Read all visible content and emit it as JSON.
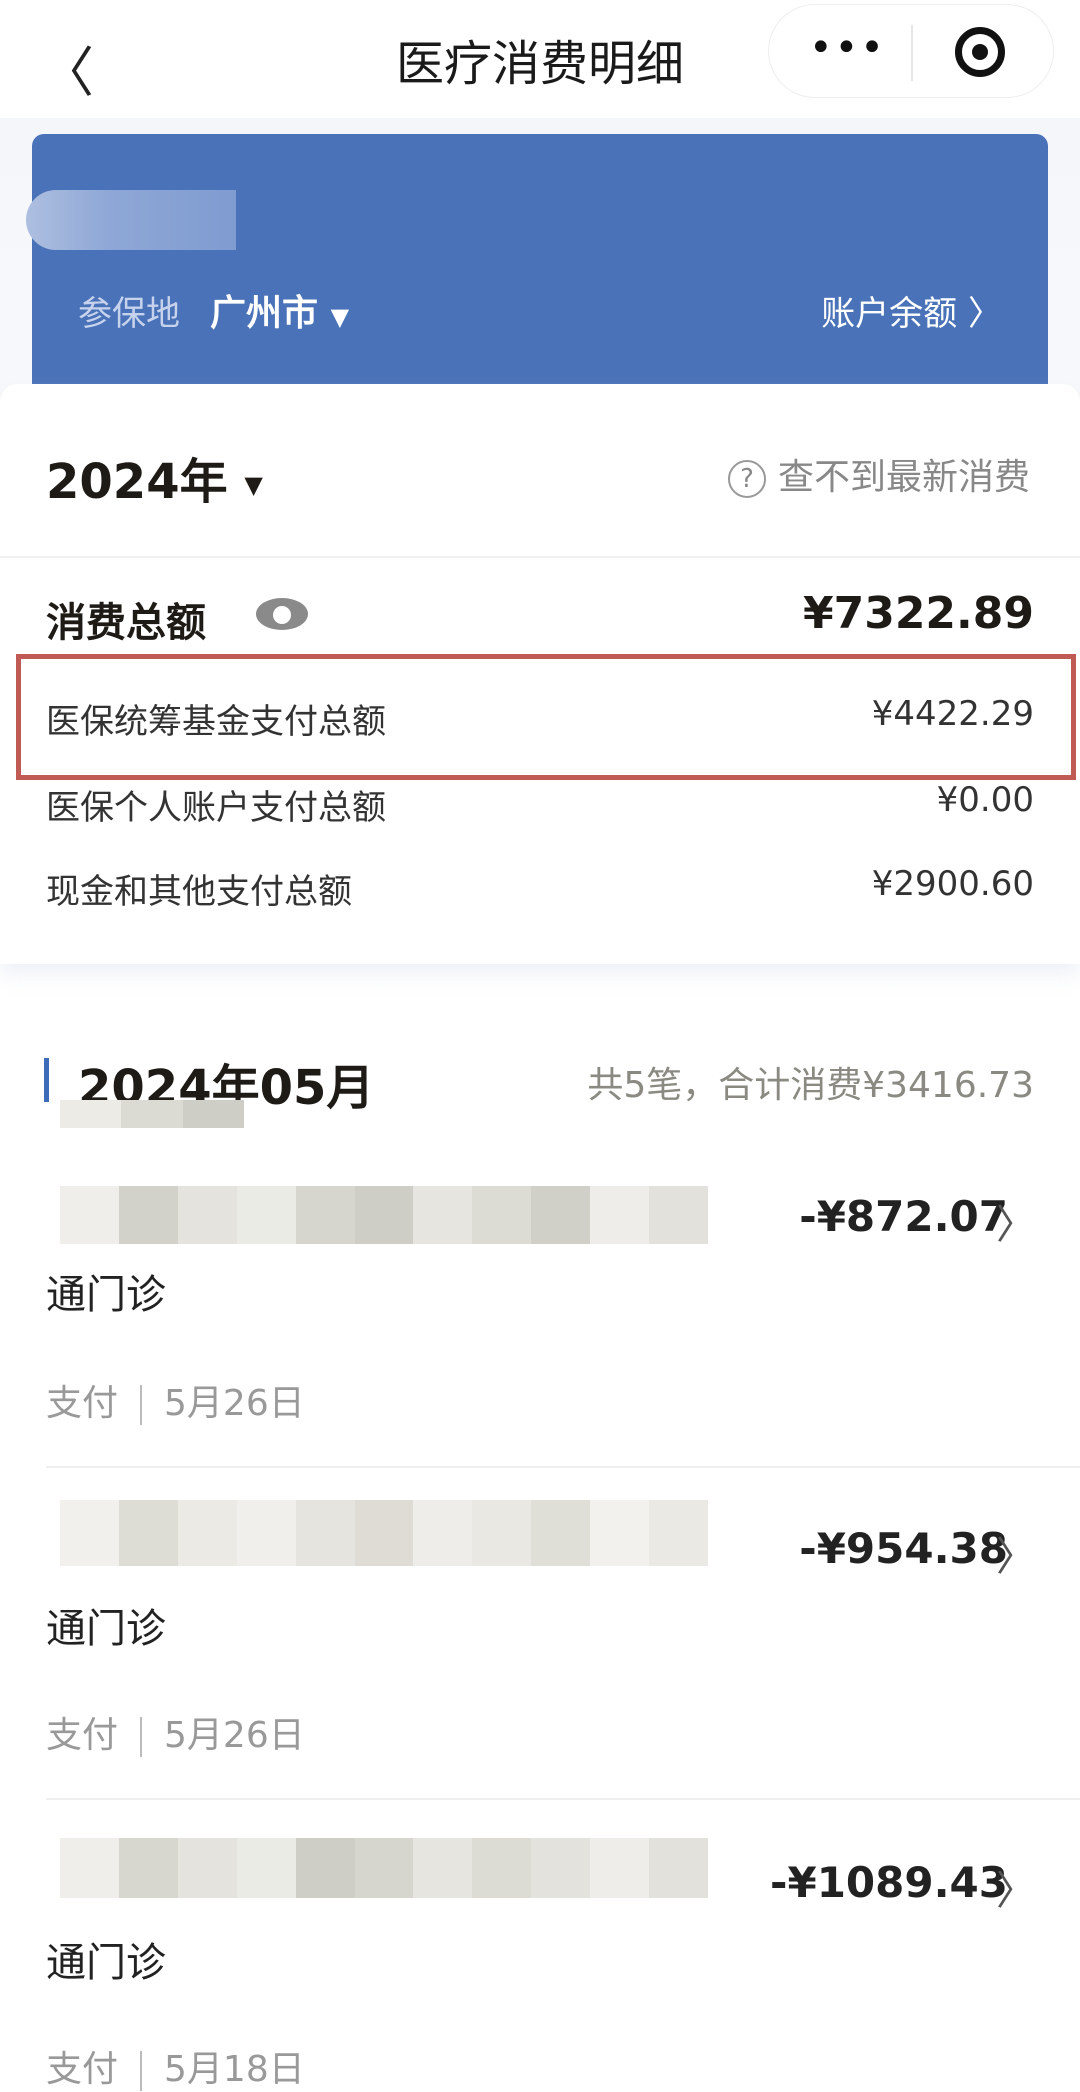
{
  "nav": {
    "title": "医疗消费明细",
    "more": "•••"
  },
  "banner": {
    "location_label": "参保地",
    "city": "广州市",
    "balance_link": "账户余额 〉"
  },
  "summary": {
    "year": "2024年",
    "help": "查不到最新消费",
    "help_icon": "?",
    "total_label": "消费总额",
    "total_value": "¥7322.89",
    "rows": [
      {
        "label": "医保统筹基金支付总额",
        "value": "¥4422.29",
        "highlighted": true
      },
      {
        "label": "医保个人账户支付总额",
        "value": "¥0.00"
      },
      {
        "label": "现金和其他支付总额",
        "value": "¥2900.60"
      }
    ]
  },
  "highlight_color": "#c05a55",
  "accent": "#4a72b8",
  "month": {
    "title": "2024年05月",
    "summary": "共5笔，合计消费¥3416.73"
  },
  "items": [
    {
      "amount": "-¥872.07",
      "type": "通门诊",
      "status": "支付",
      "date": "5月26日"
    },
    {
      "amount": "-¥954.38",
      "type": "通门诊",
      "status": "支付",
      "date": "5月26日"
    },
    {
      "amount": "-¥1089.43",
      "type": "通门诊",
      "status": "支付",
      "date": "5月18日"
    }
  ]
}
